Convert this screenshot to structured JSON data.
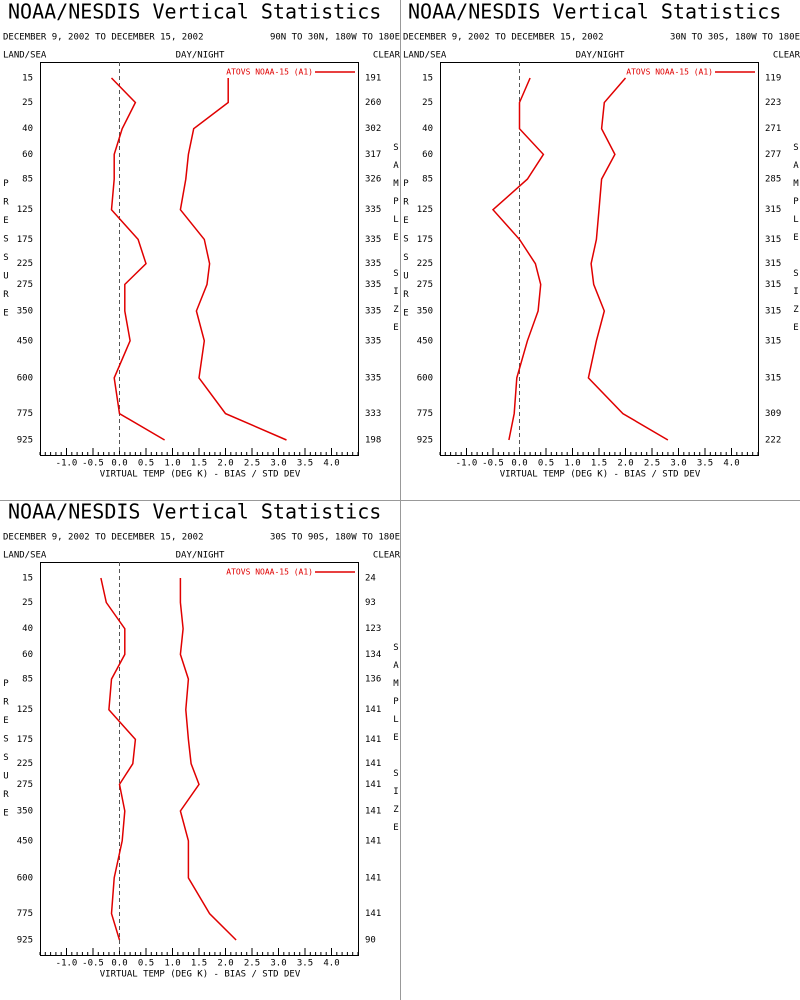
{
  "chart_data": [
    {
      "type": "line",
      "title": "NOAA/NESDIS Vertical Statistics",
      "subtitle": "DECEMBER 9, 2002 TO DECEMBER 15, 2002",
      "region": "90N TO 30N, 180W TO 180E",
      "left_header": "LAND/SEA",
      "center_header": "DAY/NIGHT",
      "right_header": "CLEAR",
      "y_label": "PRESSURE",
      "y2_label": "SAMPLE SIZE",
      "x_label": "VIRTUAL TEMP (DEG K) - BIAS / STD DEV",
      "y": [
        15,
        25,
        40,
        60,
        85,
        125,
        175,
        225,
        275,
        350,
        450,
        600,
        775,
        925
      ],
      "sample_size": [
        191,
        260,
        302,
        317,
        326,
        335,
        335,
        335,
        335,
        335,
        335,
        335,
        333,
        198
      ],
      "xlim": [
        -1.5,
        4.5
      ],
      "xticks": [
        {
          "value": -1,
          "label": "-1.0"
        },
        -0.5,
        {
          "value": 0,
          "label": "0.0"
        },
        0.5,
        {
          "value": 1,
          "label": "1.0"
        },
        1.5,
        {
          "value": 2,
          "label": "2.0"
        },
        2.5,
        {
          "value": 3,
          "label": "3.0"
        },
        3.5,
        {
          "value": 4,
          "label": "4.0"
        }
      ],
      "series": [
        {
          "name": "ATOVS NOAA-15 (A1)",
          "color": "#e00000",
          "bias": [
            -0.15,
            0.3,
            0.05,
            -0.1,
            -0.1,
            -0.15,
            0.35,
            0.5,
            0.1,
            0.1,
            0.2,
            -0.1,
            0,
            0.85
          ],
          "std_dev": [
            2.05,
            2.05,
            1.4,
            1.3,
            1.25,
            1.15,
            1.6,
            1.7,
            1.65,
            1.45,
            1.6,
            1.5,
            2.0,
            3.15
          ]
        }
      ]
    },
    {
      "type": "line",
      "title": "NOAA/NESDIS Vertical Statistics",
      "subtitle": "DECEMBER 9, 2002 TO DECEMBER 15, 2002",
      "region": "30N TO 30S, 180W TO 180E",
      "left_header": "LAND/SEA",
      "center_header": "DAY/NIGHT",
      "right_header": "CLEAR",
      "y_label": "PRESSURE",
      "y2_label": "SAMPLE SIZE",
      "x_label": "VIRTUAL TEMP (DEG K) - BIAS / STD DEV",
      "y": [
        15,
        25,
        40,
        60,
        85,
        125,
        175,
        225,
        275,
        350,
        450,
        600,
        775,
        925
      ],
      "sample_size": [
        119,
        223,
        271,
        277,
        285,
        315,
        315,
        315,
        315,
        315,
        315,
        315,
        309,
        222
      ],
      "xlim": [
        -1.5,
        4.5
      ],
      "xticks": [
        {
          "value": -1,
          "label": "-1.0"
        },
        -0.5,
        {
          "value": 0,
          "label": "0.0"
        },
        0.5,
        {
          "value": 1,
          "label": "1.0"
        },
        1.5,
        {
          "value": 2,
          "label": "2.0"
        },
        2.5,
        {
          "value": 3,
          "label": "3.0"
        },
        3.5,
        {
          "value": 4,
          "label": "4.0"
        }
      ],
      "series": [
        {
          "name": "ATOVS NOAA-15 (A1)",
          "color": "#e00000",
          "bias": [
            0.2,
            0,
            0,
            0.45,
            0.15,
            -0.5,
            0,
            0.3,
            0.4,
            0.35,
            0.15,
            -0.05,
            -0.1,
            -0.2
          ],
          "std_dev": [
            2.0,
            1.6,
            1.55,
            1.8,
            1.55,
            1.5,
            1.45,
            1.35,
            1.4,
            1.6,
            1.45,
            1.3,
            1.95,
            2.8
          ]
        }
      ]
    },
    {
      "type": "line",
      "title": "NOAA/NESDIS Vertical Statistics",
      "subtitle": "DECEMBER 9, 2002 TO DECEMBER 15, 2002",
      "region": "30S TO 90S, 180W TO 180E",
      "left_header": "LAND/SEA",
      "center_header": "DAY/NIGHT",
      "right_header": "CLEAR",
      "y_label": "PRESSURE",
      "y2_label": "SAMPLE SIZE",
      "x_label": "VIRTUAL TEMP (DEG K) - BIAS / STD DEV",
      "y": [
        15,
        25,
        40,
        60,
        85,
        125,
        175,
        225,
        275,
        350,
        450,
        600,
        775,
        925
      ],
      "sample_size": [
        24,
        93,
        123,
        134,
        136,
        141,
        141,
        141,
        141,
        141,
        141,
        141,
        141,
        90
      ],
      "xlim": [
        -1.5,
        4.5
      ],
      "xticks": [
        {
          "value": -1,
          "label": "-1.0"
        },
        -0.5,
        {
          "value": 0,
          "label": "0.0"
        },
        0.5,
        {
          "value": 1,
          "label": "1.0"
        },
        1.5,
        {
          "value": 2,
          "label": "2.0"
        },
        2.5,
        {
          "value": 3,
          "label": "3.0"
        },
        3.5,
        {
          "value": 4,
          "label": "4.0"
        }
      ],
      "series": [
        {
          "name": "ATOVS NOAA-15 (A1)",
          "color": "#e00000",
          "bias": [
            -0.35,
            -0.25,
            0.1,
            0.1,
            -0.15,
            -0.2,
            0.3,
            0.25,
            0,
            0.1,
            0.05,
            -0.1,
            -0.15,
            0
          ],
          "std_dev": [
            1.15,
            1.15,
            1.2,
            1.15,
            1.3,
            1.25,
            1.3,
            1.35,
            1.5,
            1.15,
            1.3,
            1.3,
            1.7,
            2.2
          ]
        }
      ]
    }
  ]
}
